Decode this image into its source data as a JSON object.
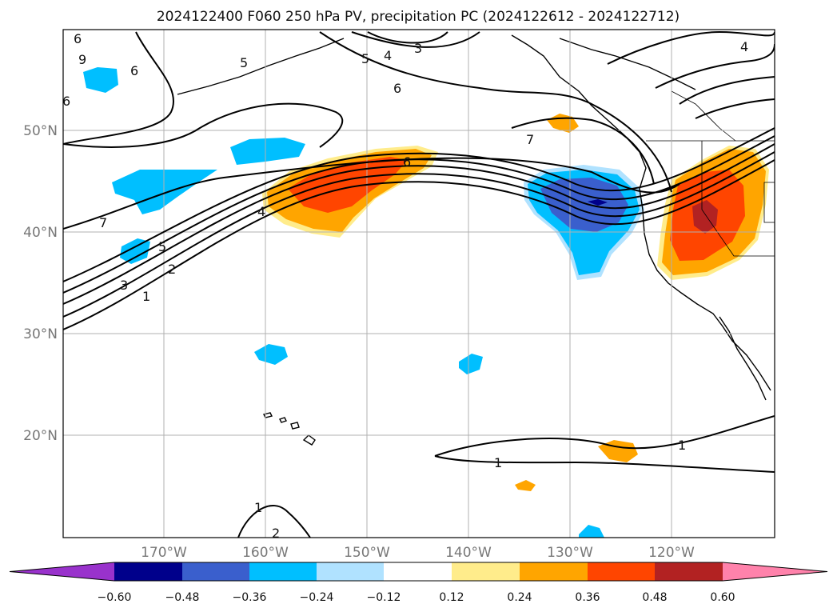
{
  "title": "2024122400 F060 250 hPa PV, precipitation PC (2024122612 - 2024122712)",
  "map": {
    "lat_ticks": [
      "50°N",
      "40°N",
      "30°N",
      "20°N"
    ],
    "lon_ticks": [
      "170°W",
      "160°W",
      "150°W",
      "140°W",
      "130°W",
      "120°W"
    ],
    "grid": true
  },
  "colorbar": {
    "ticks": [
      "−0.60",
      "−0.48",
      "−0.36",
      "−0.24",
      "−0.12",
      "0.12",
      "0.24",
      "0.36",
      "0.48",
      "0.60"
    ],
    "colors": [
      "#9932cc",
      "#00008b",
      "#3a5fcd",
      "#00bfff",
      "#b0e2ff",
      "#ffffff",
      "#ffec8b",
      "#ffa500",
      "#ff4500",
      "#b22222",
      "#ff82ab"
    ],
    "extend": "both"
  },
  "contour_labels": [
    "6",
    "6",
    "5",
    "6",
    "9",
    "5",
    "4",
    "3",
    "6",
    "7",
    "6",
    "7",
    "4",
    "5",
    "3",
    "2",
    "1",
    "4",
    "1",
    "1",
    "1",
    "2"
  ]
}
